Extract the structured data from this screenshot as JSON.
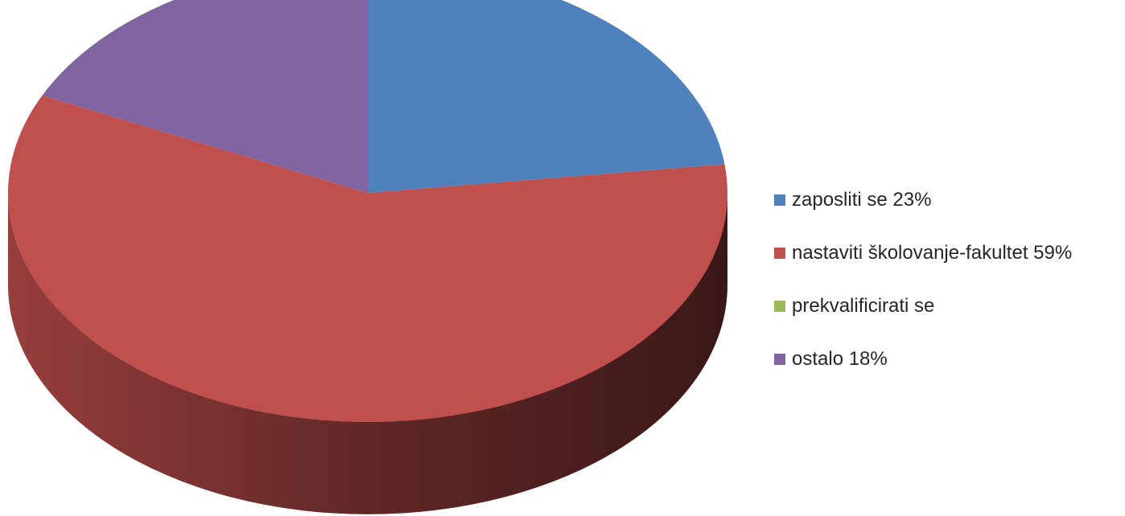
{
  "chart_data": {
    "type": "pie",
    "three_d": true,
    "start": "top, clockwise",
    "legend_position": "right",
    "slices": [
      {
        "label": "zaposliti se 23%",
        "value": 23,
        "color": "#4F81BD"
      },
      {
        "label": "nastaviti školovanje-fakultet 59%",
        "value": 59,
        "color": "#C0504D"
      },
      {
        "label": "prekvalificirati se",
        "value": 0,
        "color": "#9BBB59"
      },
      {
        "label": "ostalo 18%",
        "value": 18,
        "color": "#8064A2"
      }
    ]
  }
}
